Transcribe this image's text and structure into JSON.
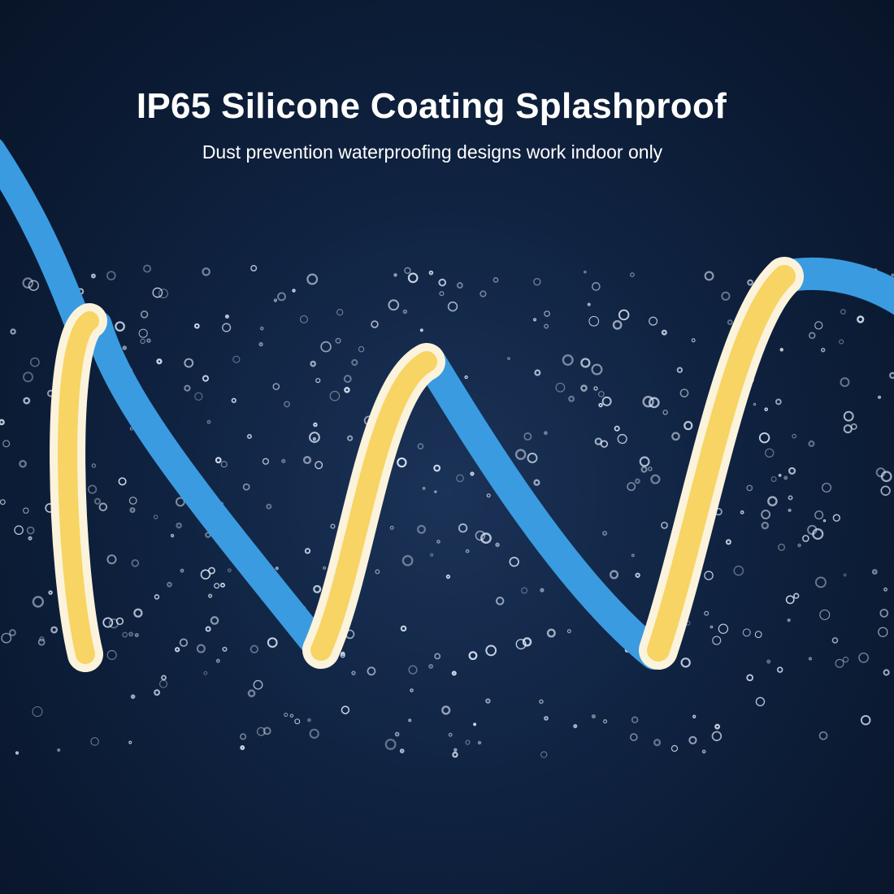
{
  "headline": {
    "title": "IP65 Silicone Coating Splashproof",
    "subtitle": "Dust prevention waterproofing designs work indoor only"
  },
  "image": {
    "subject": "led-strip-light",
    "colors": {
      "background": "#0f2240",
      "strip_back": "#3a9be0",
      "strip_front": "#f7d463",
      "coating": "#fbf3dc"
    }
  }
}
